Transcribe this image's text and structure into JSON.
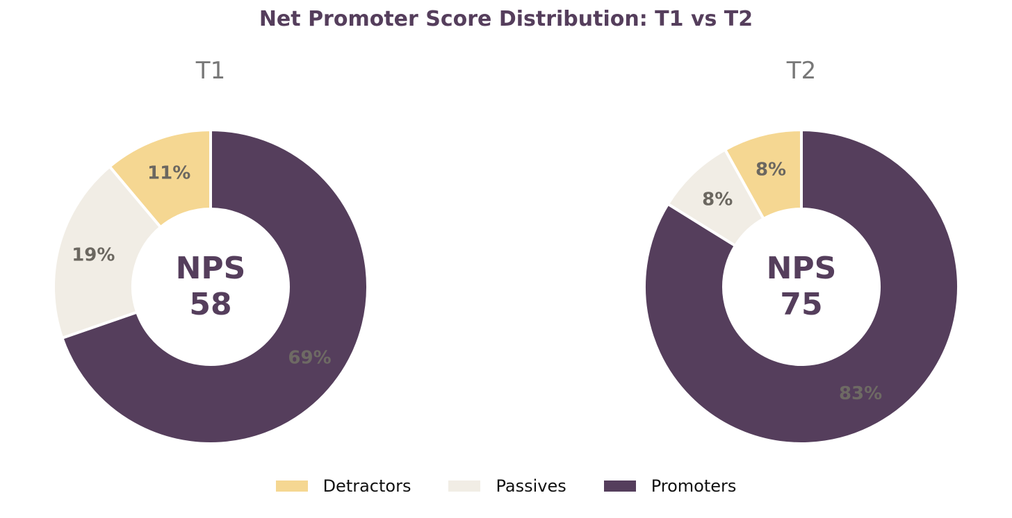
{
  "chart_data": [
    {
      "type": "pie",
      "subtype": "donut",
      "title": "T1",
      "categories": [
        "Detractors",
        "Passives",
        "Promoters"
      ],
      "values": [
        11,
        19,
        69
      ],
      "labels": [
        "11%",
        "19%",
        "69%"
      ],
      "center_label": "NPS",
      "center_value": "58"
    },
    {
      "type": "pie",
      "subtype": "donut",
      "title": "T2",
      "categories": [
        "Detractors",
        "Passives",
        "Promoters"
      ],
      "values": [
        8,
        8,
        83
      ],
      "labels": [
        "8%",
        "8%",
        "83%"
      ],
      "center_label": "NPS",
      "center_value": "75"
    }
  ],
  "title": "Net Promoter Score Distribution: T1 vs T2",
  "legend": {
    "placement": "bottom-center",
    "items": [
      "Detractors",
      "Passives",
      "Promoters"
    ]
  },
  "colors": {
    "Detractors": "#f5d792",
    "Passives": "#f1ede5",
    "Promoters": "#553e5c",
    "title": "#553e5c",
    "subtitle": "#777777",
    "slice_label": "#6b6760",
    "promoter_label": "#6e6a64"
  }
}
